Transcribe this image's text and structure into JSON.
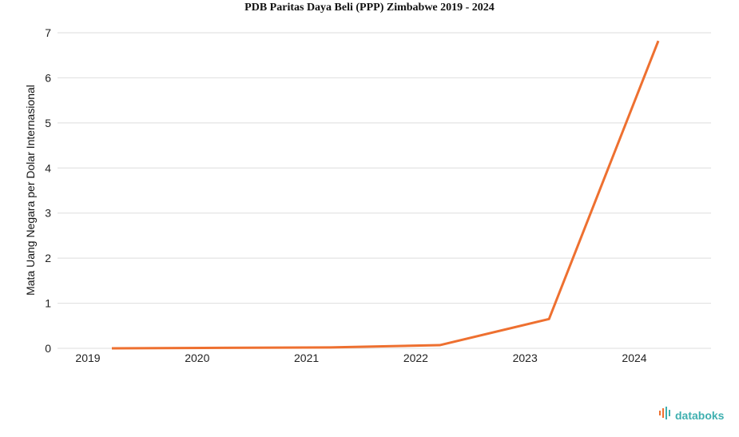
{
  "chart_data": {
    "type": "line",
    "title": "PDB Paritas Daya Beli (PPP) Zimbabwe 2019 - 2024",
    "xlabel": "",
    "ylabel": "Mata Uang Negara per Dolar Internasional",
    "categories": [
      "2019",
      "2020",
      "2021",
      "2022",
      "2023",
      "2024"
    ],
    "series": [
      {
        "values": [
          0.0,
          0.01,
          0.02,
          0.07,
          0.65,
          6.82
        ]
      }
    ],
    "ylim": [
      0,
      7
    ],
    "yticks": [
      0,
      1,
      2,
      3,
      4,
      5,
      6,
      7
    ],
    "grid": true,
    "line_color": "#ee7030"
  },
  "brand": {
    "name": "databoks",
    "icon": "databoks-logo-icon",
    "colors": [
      "#ee7030",
      "#3fb0b0"
    ]
  }
}
